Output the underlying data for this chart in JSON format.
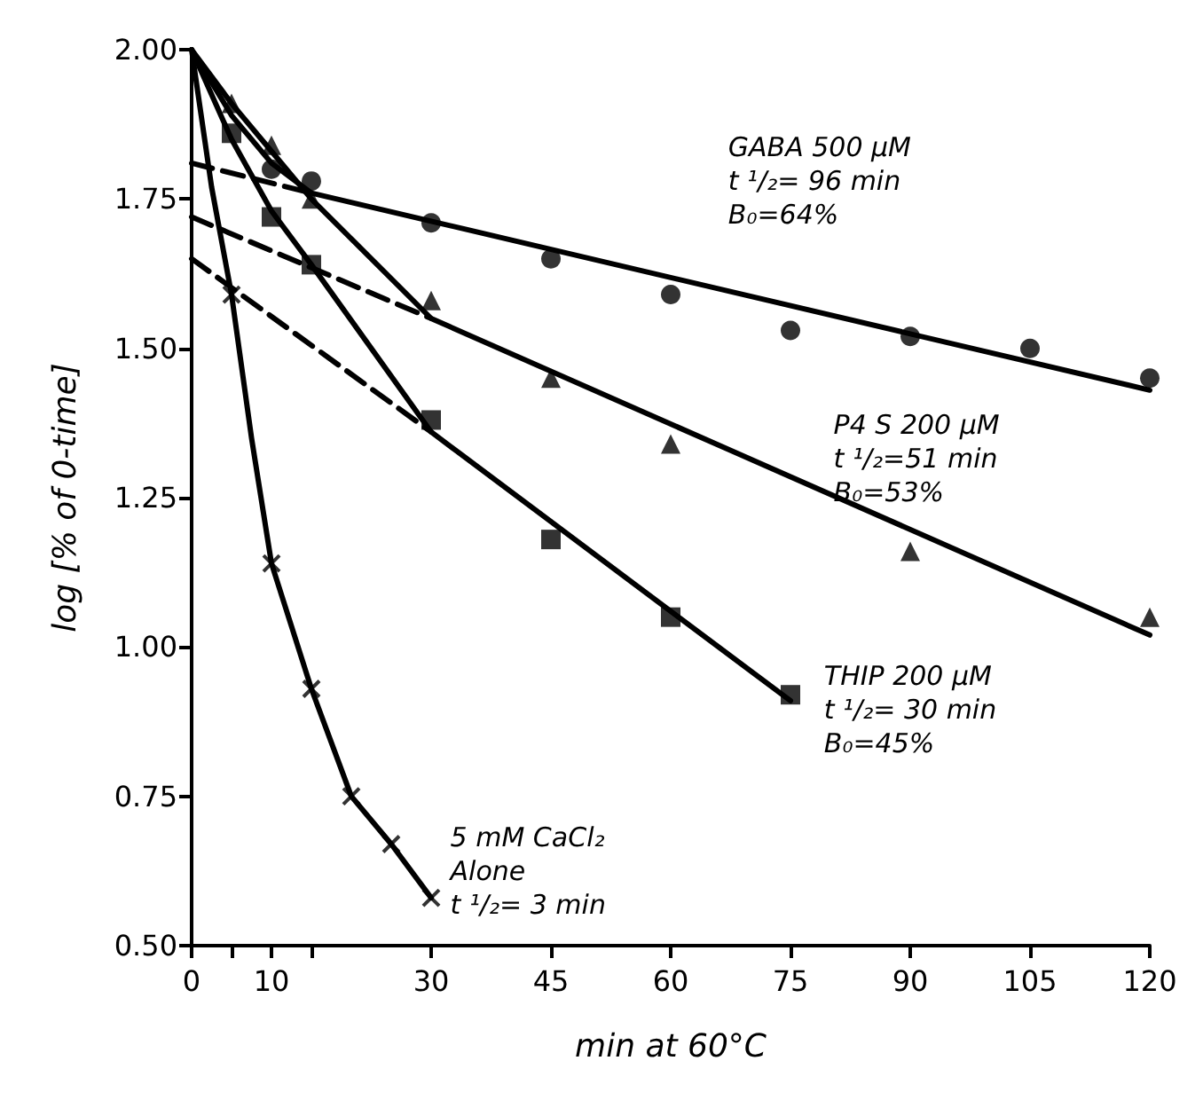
{
  "chart_data": {
    "type": "scatter",
    "xlabel": "min at 60°C",
    "ylabel": "log [% of 0-time]",
    "xlim": [
      0,
      120
    ],
    "xticks": [
      0,
      {
        "value": 5,
        "label": null
      },
      10,
      {
        "value": 15,
        "label": null
      },
      30,
      45,
      60,
      75,
      90,
      105,
      120
    ],
    "ylim": [
      0.5,
      2.0
    ],
    "yticks": [
      {
        "value": 0.5,
        "label": "0.50"
      },
      {
        "value": 0.75,
        "label": "0.75"
      },
      {
        "value": 1.0,
        "label": "1.00"
      },
      {
        "value": 1.25,
        "label": "1.25"
      },
      {
        "value": 1.5,
        "label": "1.50"
      },
      {
        "value": 1.75,
        "label": "1.75"
      },
      {
        "value": 2.0,
        "label": "2.00"
      }
    ],
    "grid": false,
    "series": [
      {
        "marker": "circle",
        "color": "#000000",
        "x": [
          10,
          15,
          30,
          45,
          60,
          75,
          90,
          105,
          120
        ],
        "values": [
          1.8,
          1.78,
          1.71,
          1.65,
          1.59,
          1.53,
          1.52,
          1.5,
          1.45
        ]
      },
      {
        "marker": "triangle",
        "color": "#000000",
        "x": [
          5,
          10,
          15,
          30,
          45,
          60,
          90,
          120
        ],
        "values": [
          1.91,
          1.84,
          1.75,
          1.58,
          1.45,
          1.34,
          1.16,
          1.05
        ]
      },
      {
        "marker": "square",
        "color": "#000000",
        "x": [
          5,
          10,
          15,
          30,
          45,
          60,
          75
        ],
        "values": [
          1.86,
          1.72,
          1.64,
          1.38,
          1.18,
          1.05,
          0.92
        ]
      },
      {
        "marker": "cross",
        "color": "#000000",
        "x": [
          5,
          10,
          15,
          20,
          25,
          30
        ],
        "values": [
          1.59,
          1.14,
          0.93,
          0.75,
          0.67,
          0.58
        ]
      },
      {
        "type": "line",
        "marker": "none",
        "line_style": "solid",
        "color": "#000000",
        "x": [
          0,
          5,
          10,
          15,
          120
        ],
        "values": [
          2.0,
          1.89,
          1.81,
          1.76,
          1.43
        ]
      },
      {
        "type": "line",
        "marker": "none",
        "line_style": "dashed",
        "color": "#000000",
        "x": [
          0,
          15
        ],
        "values": [
          1.81,
          1.76
        ]
      },
      {
        "type": "line",
        "marker": "none",
        "line_style": "solid",
        "color": "#000000",
        "x": [
          0,
          5,
          10,
          15,
          30,
          120
        ],
        "values": [
          2.0,
          1.91,
          1.83,
          1.75,
          1.55,
          1.02
        ]
      },
      {
        "type": "line",
        "marker": "none",
        "line_style": "dashed",
        "color": "#000000",
        "x": [
          0,
          30
        ],
        "values": [
          1.72,
          1.55
        ]
      },
      {
        "type": "line",
        "marker": "none",
        "line_style": "solid",
        "color": "#000000",
        "x": [
          0,
          5,
          10,
          15,
          30,
          75
        ],
        "values": [
          2.0,
          1.85,
          1.73,
          1.64,
          1.36,
          0.91
        ]
      },
      {
        "type": "line",
        "marker": "none",
        "line_style": "dashed",
        "color": "#000000",
        "x": [
          0,
          30
        ],
        "values": [
          1.65,
          1.36
        ]
      },
      {
        "type": "line",
        "marker": "none",
        "line_style": "solid",
        "color": "#000000",
        "x": [
          0,
          2.5,
          5,
          7.5,
          10,
          15,
          20,
          25,
          30
        ],
        "values": [
          2.0,
          1.77,
          1.59,
          1.35,
          1.14,
          0.93,
          0.75,
          0.67,
          0.58
        ]
      }
    ],
    "annotations": [
      "GABA 500 µM\nt ¹/₂= 96 min\nB₀=64%",
      "P4 S 200 µM\nt ¹/₂=51 min\nB₀=53%",
      "THIP 200 µM\nt ¹/₂= 30 min\nB₀=45%",
      "5 mM CaCl₂\nAlone\nt ¹/₂= 3 min"
    ]
  }
}
